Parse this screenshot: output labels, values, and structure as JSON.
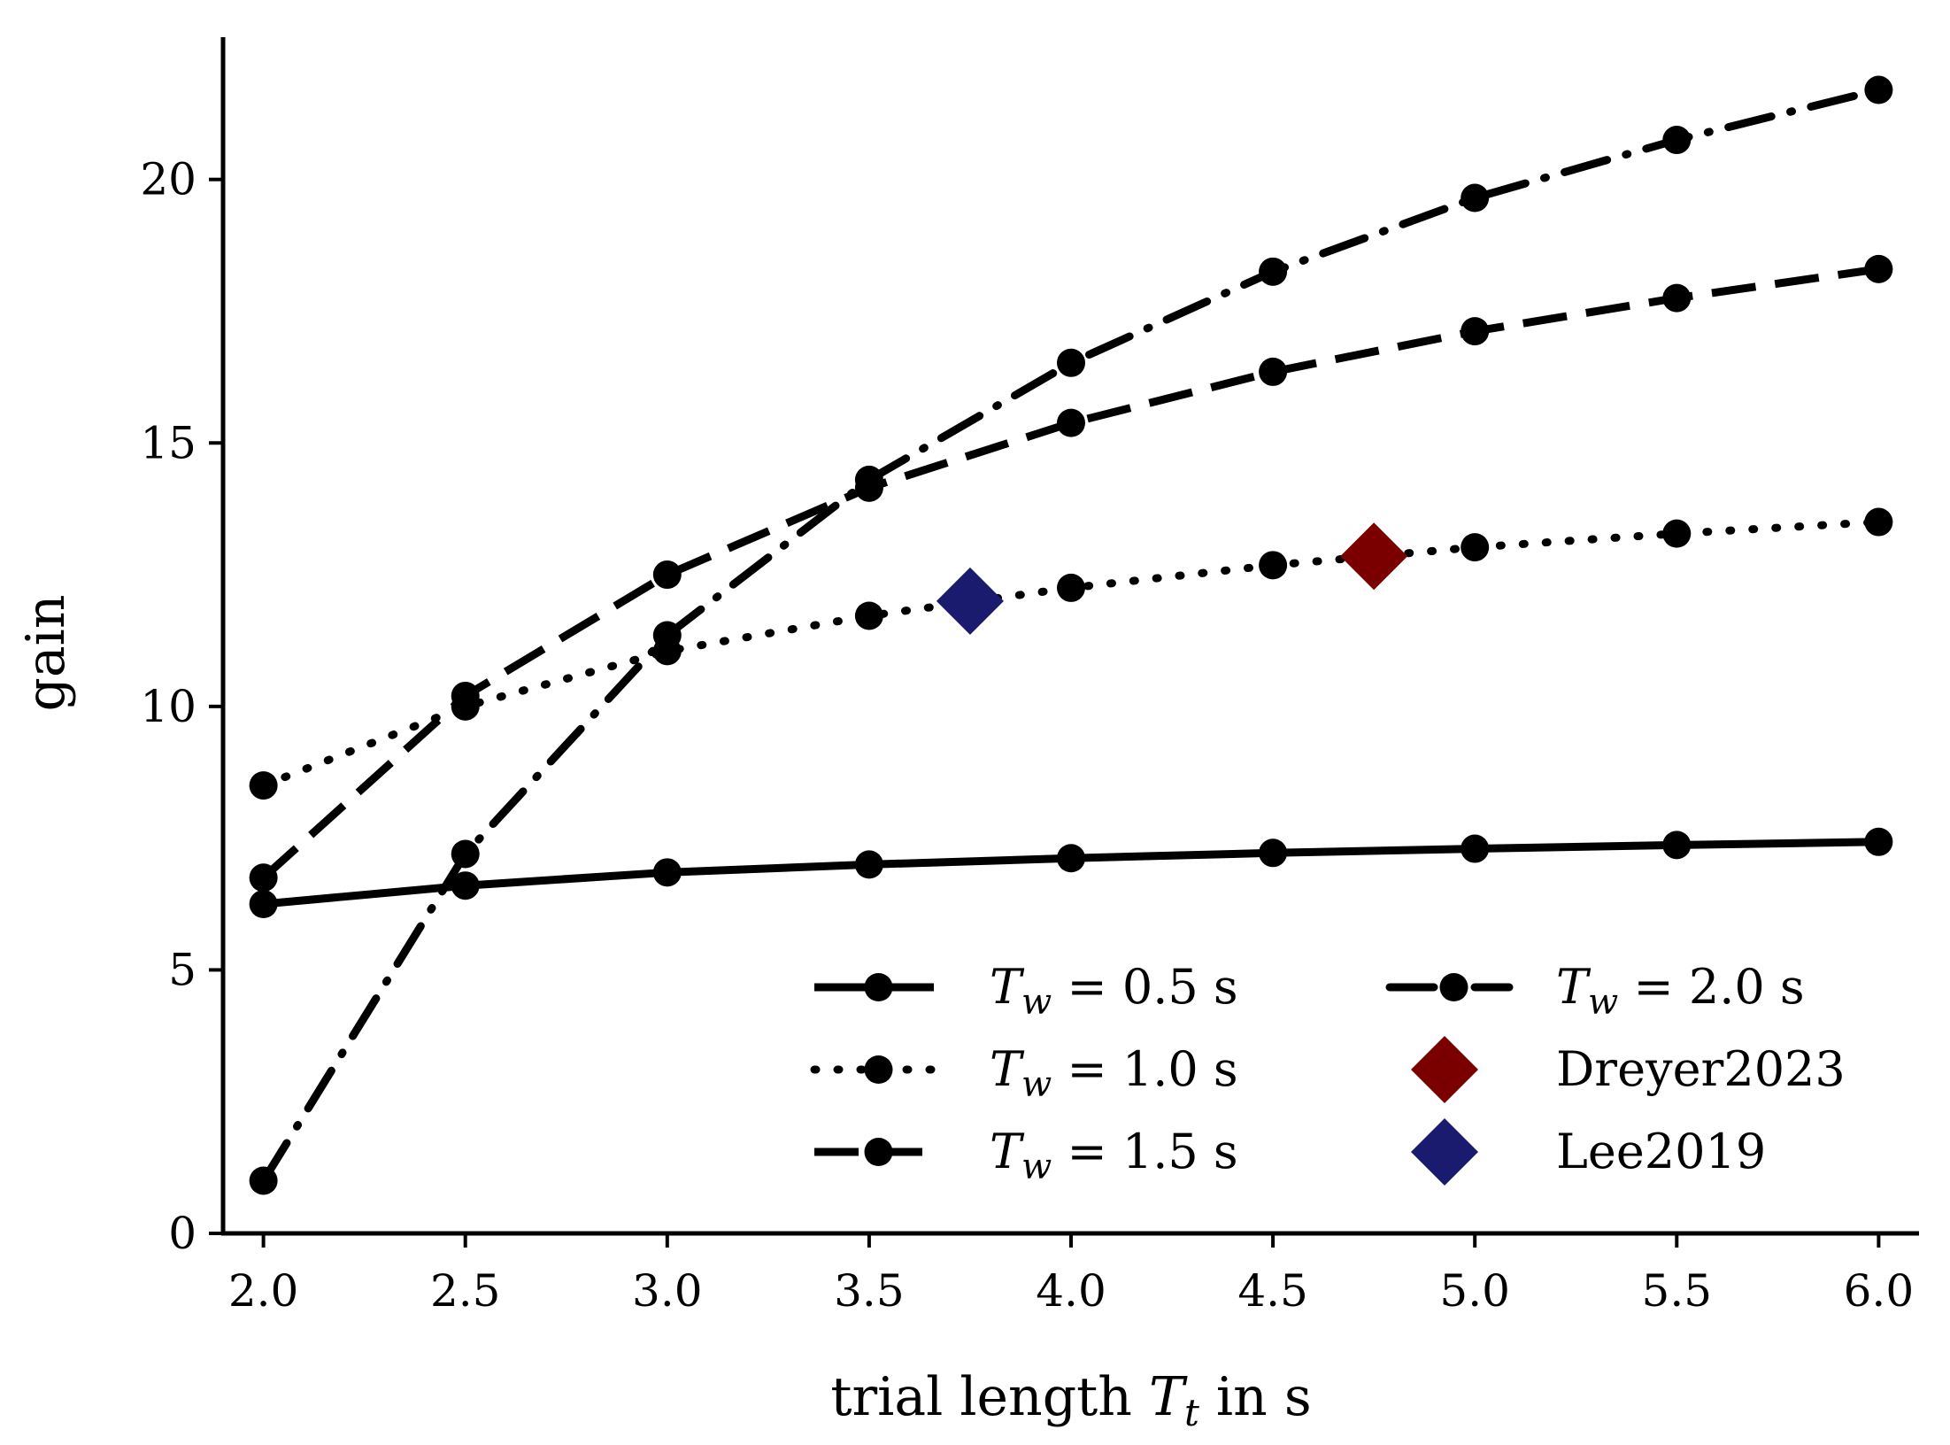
{
  "chart_data": {
    "type": "line",
    "xlabel_prefix": "trial length ",
    "xlabel_var": "T",
    "xlabel_sub": "t",
    "xlabel_suffix": " in s",
    "ylabel": "gain",
    "xlim": [
      1.9,
      6.1
    ],
    "ylim": [
      0,
      22.7
    ],
    "xticks": [
      2.0,
      2.5,
      3.0,
      3.5,
      4.0,
      4.5,
      5.0,
      5.5,
      6.0
    ],
    "xtick_labels": [
      "2.0",
      "2.5",
      "3.0",
      "3.5",
      "4.0",
      "4.5",
      "5.0",
      "5.5",
      "6.0"
    ],
    "yticks": [
      0,
      5,
      10,
      15,
      20
    ],
    "ytick_labels": [
      "0",
      "5",
      "10",
      "15",
      "20"
    ],
    "grid": false,
    "legend_position": "bottom-right",
    "x": [
      2.0,
      2.5,
      3.0,
      3.5,
      4.0,
      4.5,
      5.0,
      5.5,
      6.0
    ],
    "series": [
      {
        "label_var": "T",
        "label_sub": "w",
        "label_value": " = 0.5 s",
        "style": "solid",
        "values": [
          6.25,
          6.6,
          6.85,
          7.0,
          7.12,
          7.22,
          7.3,
          7.37,
          7.43
        ]
      },
      {
        "label_var": "T",
        "label_sub": "w",
        "label_value": " = 1.0 s",
        "style": "dotted",
        "values": [
          8.5,
          10.0,
          11.05,
          11.72,
          12.25,
          12.68,
          13.02,
          13.28,
          13.5
        ]
      },
      {
        "label_var": "T",
        "label_sub": "w",
        "label_value": " = 1.5 s",
        "style": "dashed",
        "values": [
          6.75,
          10.2,
          12.5,
          14.15,
          15.38,
          16.35,
          17.12,
          17.75,
          18.3
        ]
      },
      {
        "label_var": "T",
        "label_sub": "w",
        "label_value": " = 2.0 s",
        "style": "dashdot",
        "values": [
          1.0,
          7.2,
          11.35,
          14.3,
          16.52,
          18.25,
          19.65,
          20.75,
          21.7
        ]
      }
    ],
    "markers": [
      {
        "name": "Dreyer2023",
        "x": 4.75,
        "y": 12.85,
        "color": "#7a0000"
      },
      {
        "name": "Lee2019",
        "x": 3.75,
        "y": 12.0,
        "color": "#1a1a6e"
      }
    ]
  }
}
